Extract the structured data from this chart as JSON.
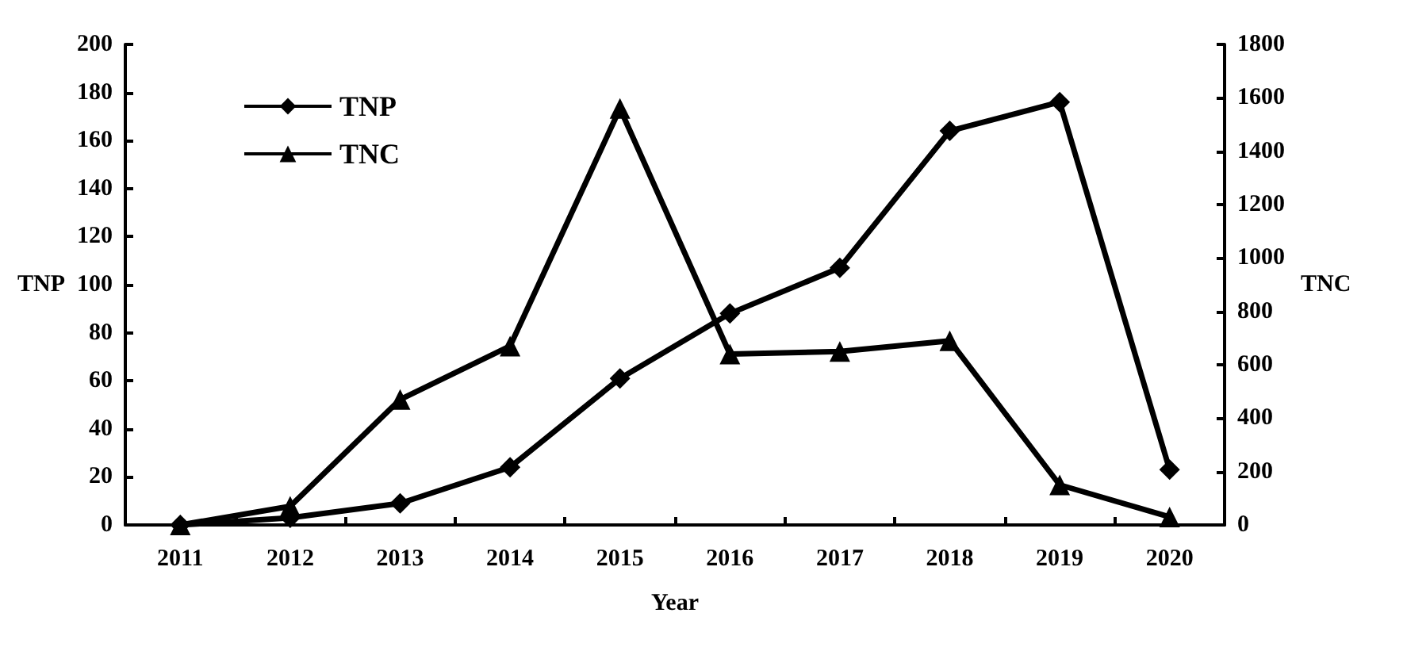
{
  "chart_data": {
    "type": "line",
    "xlabel": "Year",
    "ylabel": "TNP",
    "y2label": "TNC",
    "categories": [
      "2011",
      "2012",
      "2013",
      "2014",
      "2015",
      "2016",
      "2017",
      "2018",
      "2019",
      "2020"
    ],
    "series": [
      {
        "name": "TNP",
        "color": "#000000",
        "marker": "diamond",
        "values": [
          0,
          3,
          9,
          24,
          61,
          88,
          107,
          164,
          176,
          23
        ]
      },
      {
        "name": "TNC",
        "color": "#000000",
        "marker": "triangle",
        "axis": "y2",
        "values": [
          0,
          70,
          470,
          670,
          1560,
          640,
          650,
          690,
          150,
          30
        ]
      }
    ],
    "ylim": [
      0,
      200
    ],
    "yticks": [
      0,
      20,
      40,
      60,
      80,
      100,
      120,
      140,
      160,
      180,
      200
    ],
    "y2lim": [
      0,
      1800
    ],
    "y2ticks": [
      0,
      200,
      400,
      600,
      800,
      1000,
      1200,
      1400,
      1600,
      1800
    ],
    "grid": false,
    "legend": "top left",
    "line_style": "solid"
  }
}
